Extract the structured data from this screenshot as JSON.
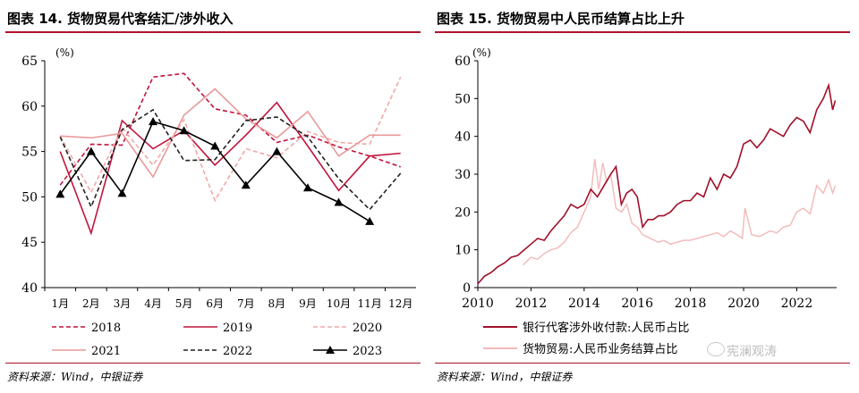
{
  "panels": [
    {
      "title": "图表 14. 货物贸易代客结汇/涉外收入",
      "source": "资料来源：Wind，中银证券"
    },
    {
      "title": "图表 15. 货物贸易中人民币结算占比上升",
      "source": "资料来源：Wind，中银证券"
    }
  ],
  "watermark": "宪澜观涛",
  "chart_data": [
    {
      "type": "line",
      "ylabel": "(%)",
      "ylim": [
        40,
        65
      ],
      "yticks": [
        40,
        45,
        50,
        55,
        60,
        65
      ],
      "categories": [
        "1月",
        "2月",
        "3月",
        "4月",
        "5月",
        "6月",
        "7月",
        "8月",
        "9月",
        "10月",
        "11月",
        "12月"
      ],
      "legend_position": "bottom",
      "series": [
        {
          "name": "2018",
          "color": "#c0143c",
          "dash": "dashed",
          "values": [
            51.3,
            55.8,
            55.7,
            63.2,
            63.6,
            59.7,
            59.0,
            56.0,
            56.8,
            55.5,
            54.5,
            53.3
          ]
        },
        {
          "name": "2019",
          "color": "#c0143c",
          "dash": "solid",
          "values": [
            55.0,
            46.0,
            58.4,
            55.3,
            57.3,
            53.5,
            56.8,
            60.4,
            55.6,
            50.7,
            54.5,
            54.8
          ]
        },
        {
          "name": "2020",
          "color": "#f0a8a8",
          "dash": "dashed",
          "values": [
            56.7,
            50.5,
            57.6,
            53.5,
            58.5,
            49.6,
            55.3,
            54.3,
            57.2,
            56.0,
            55.8,
            63.2
          ]
        },
        {
          "name": "2021",
          "color": "#e89a9a",
          "dash": "solid",
          "values": [
            56.7,
            56.5,
            57.0,
            52.2,
            59.0,
            61.9,
            58.6,
            56.5,
            59.4,
            54.5,
            56.8,
            56.8
          ]
        },
        {
          "name": "2022",
          "color": "#222222",
          "dash": "dashed",
          "values": [
            56.6,
            48.9,
            57.4,
            59.6,
            54.0,
            54.1,
            58.4,
            58.8,
            56.6,
            52.0,
            48.6,
            52.6
          ]
        },
        {
          "name": "2023",
          "color": "#000000",
          "dash": "solid",
          "marker": "triangle",
          "values": [
            50.3,
            55.0,
            50.4,
            58.3,
            57.3,
            55.6,
            51.3,
            55.0,
            51.0,
            49.4,
            47.3,
            null
          ]
        }
      ]
    },
    {
      "type": "line",
      "ylabel": "(%)",
      "ylim": [
        0,
        60
      ],
      "yticks": [
        0,
        10,
        20,
        30,
        40,
        50,
        60
      ],
      "xlim": [
        2010,
        2023.5
      ],
      "xticks": [
        2010,
        2012,
        2014,
        2016,
        2018,
        2020,
        2022
      ],
      "legend_position": "bottom",
      "series": [
        {
          "name": "银行代客涉外收付款:人民币占比",
          "color": "#a0102a",
          "x": [
            2010.0,
            2010.25,
            2010.5,
            2010.75,
            2011.0,
            2011.25,
            2011.5,
            2011.75,
            2012.0,
            2012.25,
            2012.5,
            2012.75,
            2013.0,
            2013.25,
            2013.5,
            2013.75,
            2014.0,
            2014.25,
            2014.5,
            2014.75,
            2015.0,
            2015.2,
            2015.4,
            2015.6,
            2015.8,
            2016.0,
            2016.2,
            2016.4,
            2016.6,
            2016.8,
            2017.0,
            2017.25,
            2017.5,
            2017.75,
            2018.0,
            2018.25,
            2018.5,
            2018.75,
            2019.0,
            2019.25,
            2019.5,
            2019.75,
            2020.0,
            2020.25,
            2020.5,
            2020.75,
            2021.0,
            2021.25,
            2021.5,
            2021.75,
            2022.0,
            2022.25,
            2022.5,
            2022.75,
            2023.0,
            2023.2,
            2023.35,
            2023.45
          ],
          "values": [
            1.0,
            3.0,
            4.0,
            5.5,
            6.5,
            8.0,
            8.5,
            10.0,
            11.5,
            13.0,
            12.5,
            15.0,
            17.0,
            19.0,
            22.0,
            21.0,
            22.0,
            26.0,
            24.0,
            27.0,
            30.0,
            32.0,
            22.0,
            25.0,
            26.0,
            24.0,
            16.0,
            18.0,
            18.0,
            19.0,
            19.0,
            20.0,
            22.0,
            23.0,
            23.0,
            25.0,
            24.0,
            29.0,
            26.0,
            30.0,
            29.0,
            32.0,
            38.0,
            39.0,
            37.0,
            39.0,
            42.0,
            41.0,
            40.0,
            43.0,
            45.0,
            44.0,
            41.0,
            47.0,
            50.0,
            53.5,
            47.0,
            49.5
          ]
        },
        {
          "name": "货物贸易:人民币业务结算占比",
          "color": "#f4b8b8",
          "x": [
            2011.7,
            2012.0,
            2012.25,
            2012.5,
            2012.75,
            2013.0,
            2013.25,
            2013.5,
            2013.75,
            2014.0,
            2014.25,
            2014.4,
            2014.55,
            2014.7,
            2014.85,
            2015.0,
            2015.2,
            2015.4,
            2015.6,
            2015.8,
            2016.0,
            2016.2,
            2016.5,
            2016.8,
            2017.0,
            2017.25,
            2017.5,
            2017.75,
            2018.0,
            2018.25,
            2018.5,
            2018.75,
            2019.0,
            2019.25,
            2019.5,
            2019.75,
            2019.95,
            2020.05,
            2020.3,
            2020.6,
            2021.0,
            2021.25,
            2021.5,
            2021.75,
            2022.0,
            2022.25,
            2022.5,
            2022.75,
            2023.0,
            2023.2,
            2023.35,
            2023.45
          ],
          "values": [
            6.0,
            8.0,
            7.5,
            9.0,
            10.0,
            10.5,
            12.0,
            14.5,
            16.0,
            20.0,
            24.0,
            34.0,
            26.0,
            33.0,
            28.0,
            30.0,
            21.0,
            20.0,
            22.0,
            17.0,
            16.0,
            14.0,
            13.0,
            12.0,
            12.5,
            11.5,
            12.0,
            12.5,
            12.5,
            13.0,
            13.5,
            14.0,
            14.5,
            13.5,
            15.0,
            14.0,
            13.0,
            21.0,
            14.0,
            13.5,
            15.0,
            14.5,
            16.0,
            16.5,
            20.0,
            21.0,
            19.5,
            27.0,
            25.0,
            28.5,
            25.0,
            27.0
          ]
        }
      ]
    }
  ]
}
